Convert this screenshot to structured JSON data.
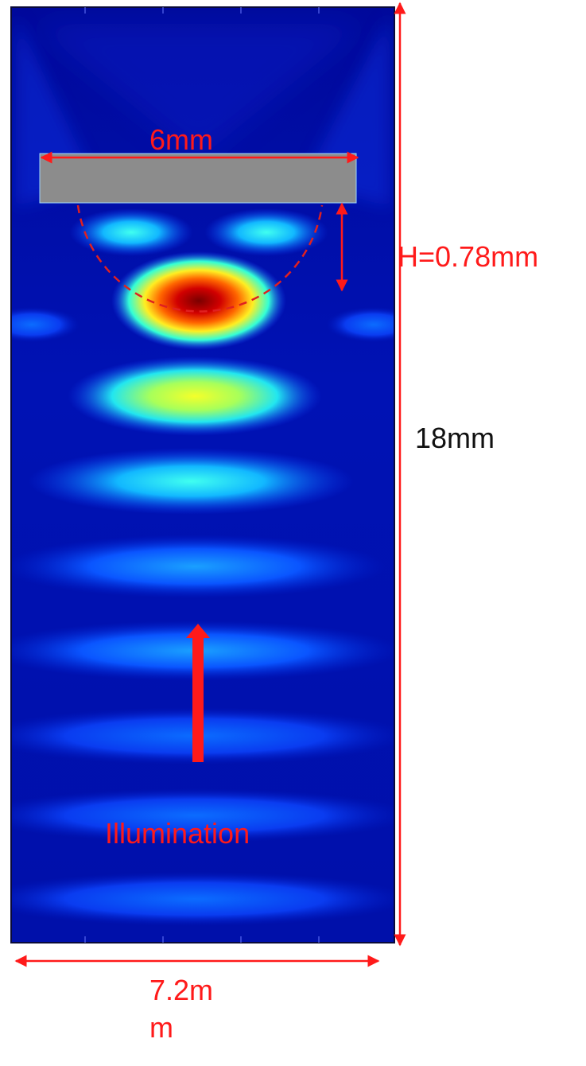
{
  "labels": {
    "slab_width": "6mm",
    "focal_height": "H=0.78mm",
    "domain_height": "18mm",
    "domain_width": "7.2mm",
    "illumination": "Illumination"
  },
  "colors": {
    "annotation_red": "#ff1a1a",
    "text_black": "#111111",
    "slab_gray": "#8c8c8c",
    "field_background": "#00008f"
  }
}
